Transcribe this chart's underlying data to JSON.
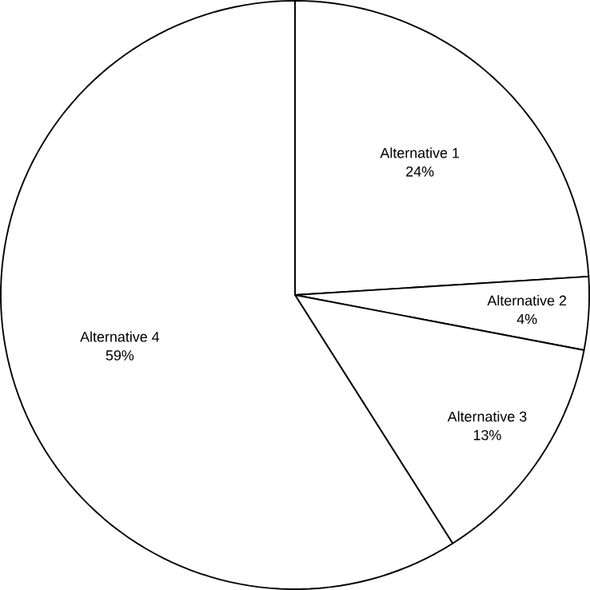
{
  "chart_data": {
    "type": "pie",
    "categories": [
      "Alternative 1",
      "Alternative 2",
      "Alternative 3",
      "Alternative 4"
    ],
    "values": [
      24,
      4,
      13,
      59
    ],
    "colors": [
      "#ffffff",
      "#ffffff",
      "#ffffff",
      "#ffffff"
    ],
    "value_labels": [
      "24%",
      "4%",
      "13%",
      "59%"
    ]
  }
}
